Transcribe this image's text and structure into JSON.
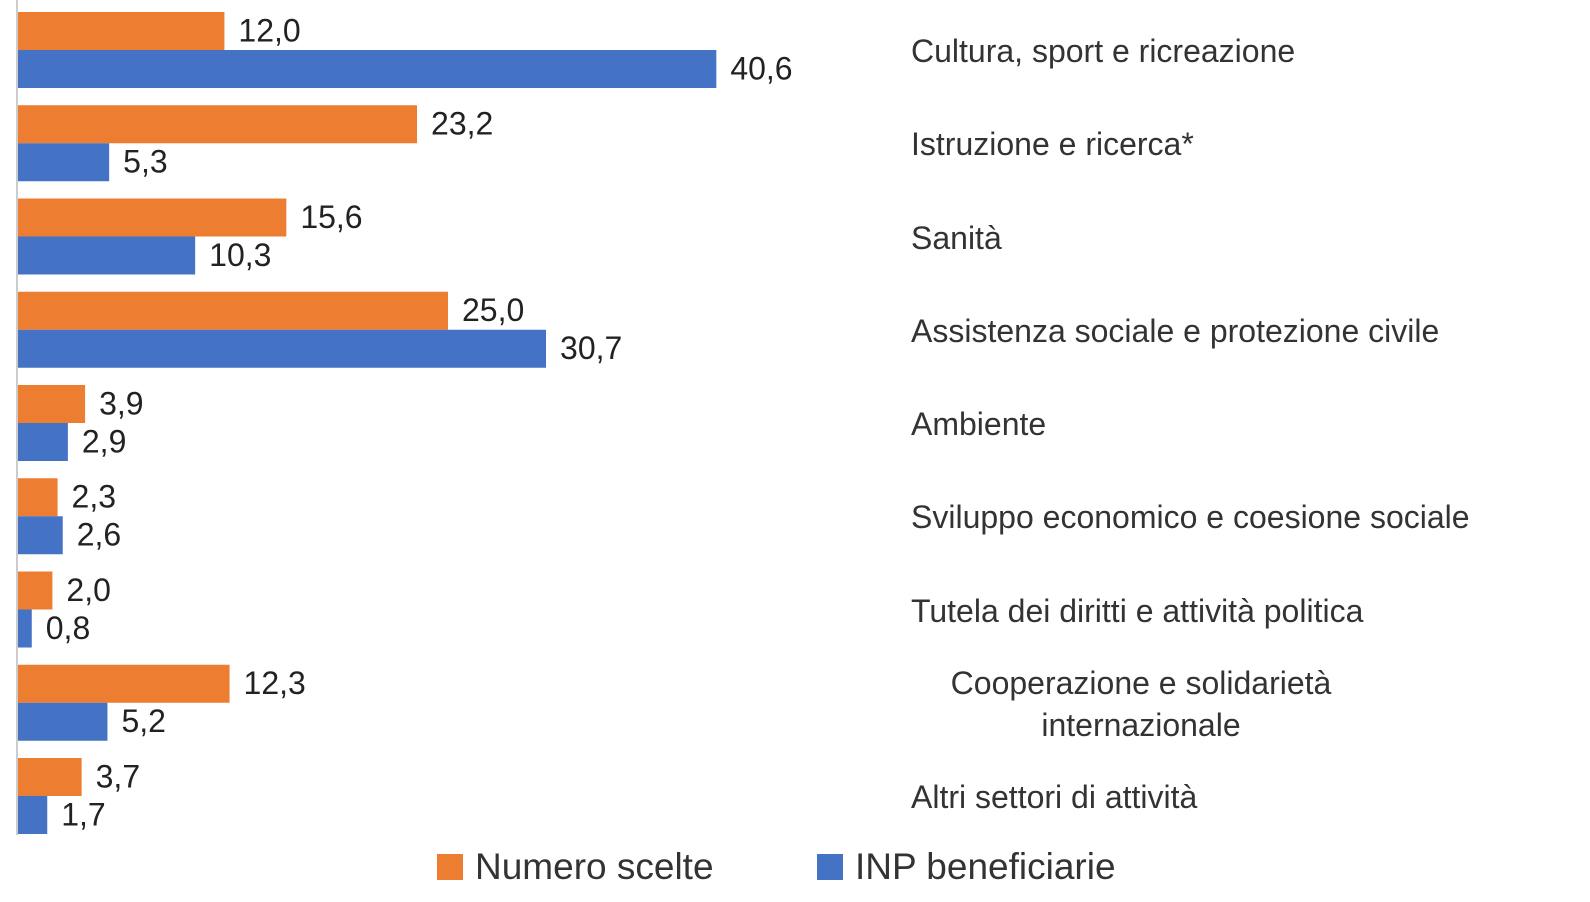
{
  "chart_data": {
    "type": "hbar",
    "categories": [
      "Cultura, sport e ricreazione",
      "Istruzione e ricerca*",
      "Sanità",
      "Assistenza sociale e protezione civile",
      "Ambiente",
      "Sviluppo economico e coesione sociale",
      "Tutela dei diritti e attività politica",
      "Cooperazione e solidarietà internazionale",
      "Altri settori di attività"
    ],
    "series": [
      {
        "name": "Numero scelte",
        "color": "#ed7d31",
        "values": [
          12.0,
          23.2,
          15.6,
          25.0,
          3.9,
          2.3,
          2.0,
          12.3,
          3.7
        ],
        "value_labels": [
          "12,0",
          "23,2",
          "15,6",
          "25,0",
          "3,9",
          "2,3",
          "2,0",
          "12,3",
          "3,7"
        ]
      },
      {
        "name": "INP beneficiarie",
        "color": "#4472c4",
        "values": [
          40.6,
          5.3,
          10.3,
          30.7,
          2.9,
          2.6,
          0.8,
          5.2,
          1.7
        ],
        "value_labels": [
          "40,6",
          "5,3",
          "10,3",
          "30,7",
          "2,9",
          "2,6",
          "0,8",
          "5,2",
          "1,7"
        ]
      }
    ],
    "xlim": [
      0,
      50
    ],
    "legend": "bottom"
  }
}
